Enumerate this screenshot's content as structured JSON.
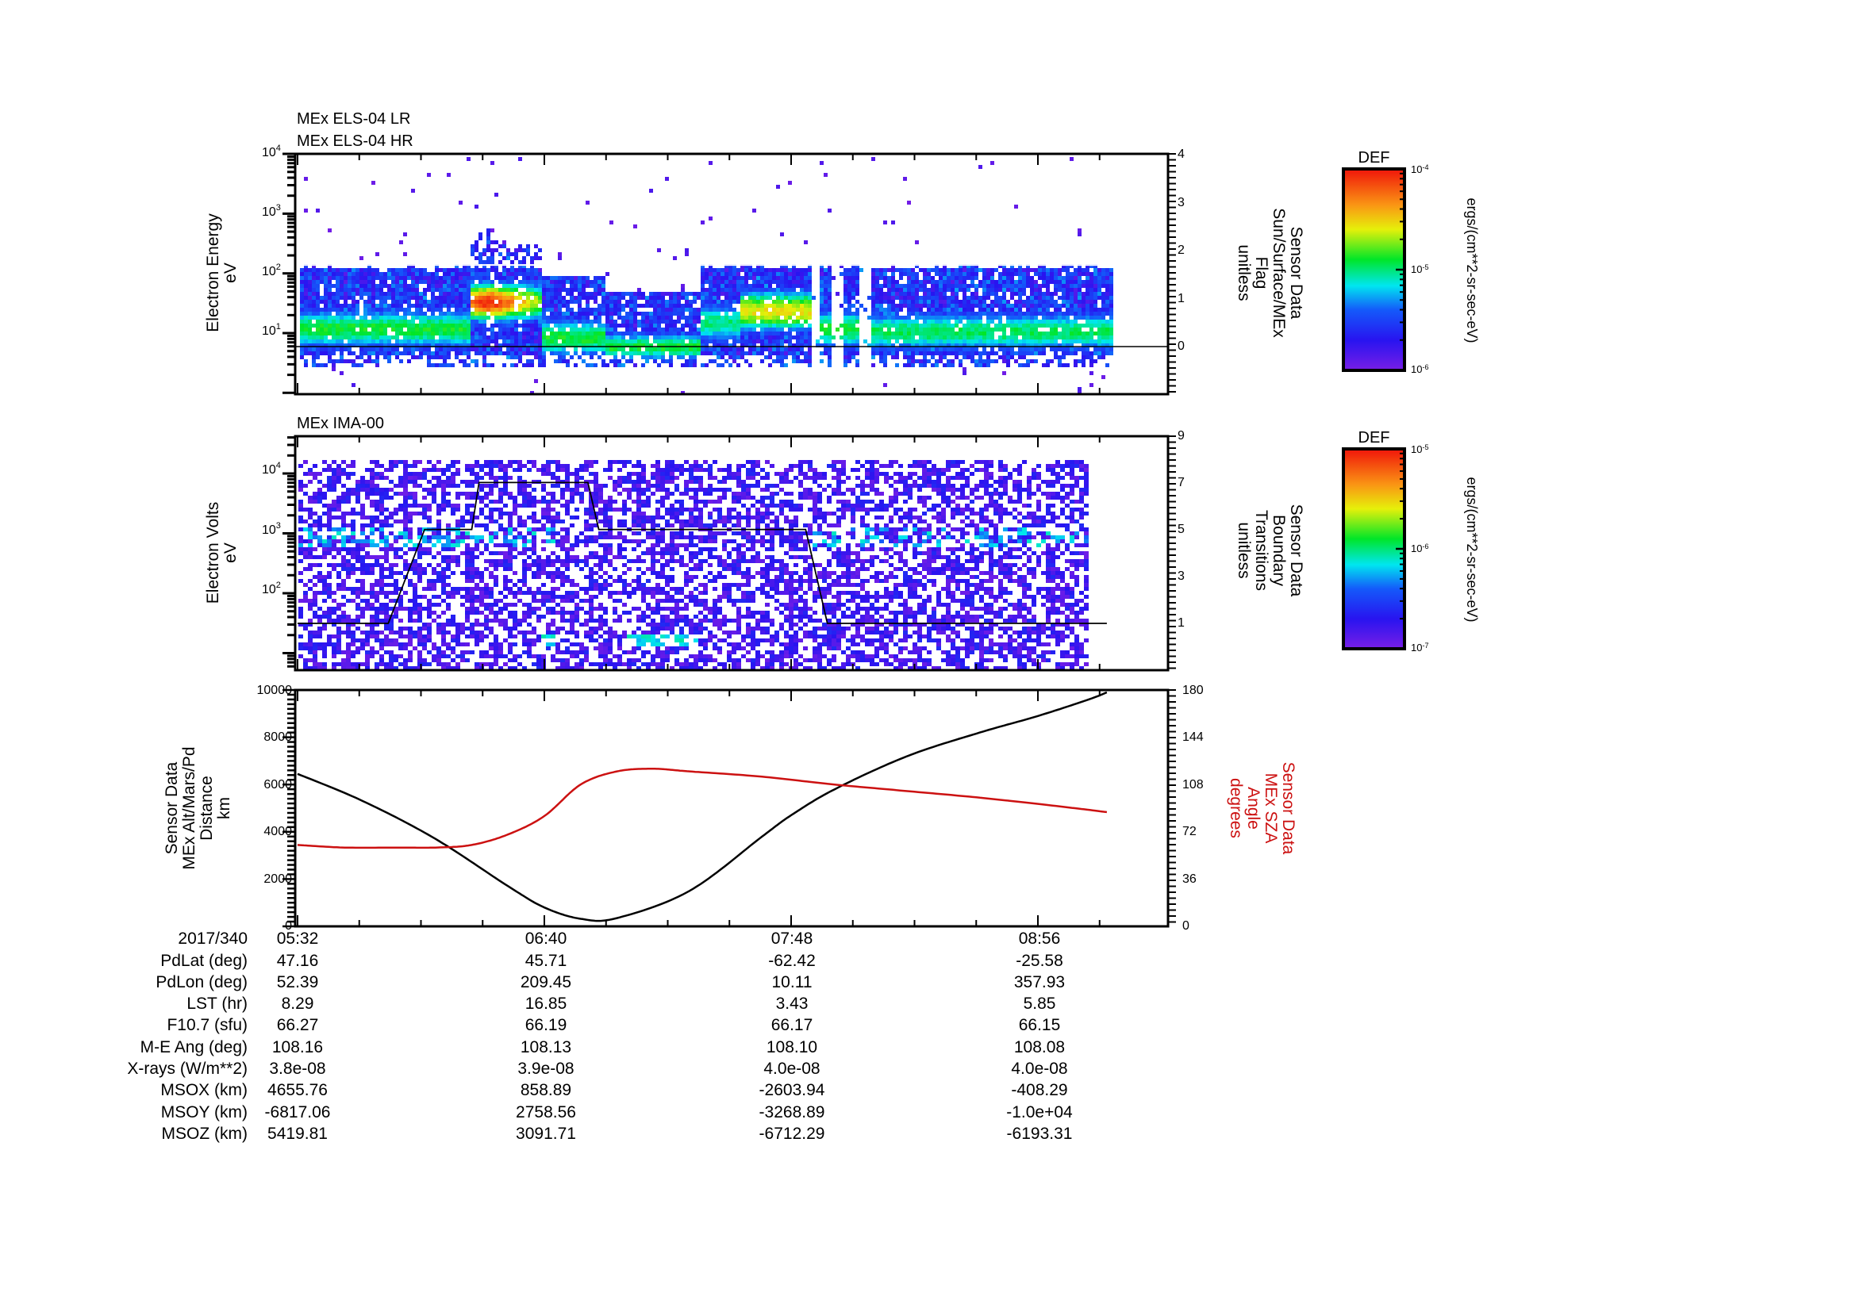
{
  "panels": {
    "els": {
      "titles": [
        "MEx ELS-04 LR",
        "MEx ELS-04 HR"
      ],
      "ylabel": [
        "Electron Energy",
        "eV"
      ],
      "y2label": [
        "Sensor Data",
        "Sun/Surface/MEx",
        "Flag",
        "unitless"
      ],
      "yticks": [
        {
          "base": "10",
          "exp": "4"
        },
        {
          "base": "10",
          "exp": "3"
        },
        {
          "base": "10",
          "exp": "2"
        },
        {
          "base": "10",
          "exp": "1"
        }
      ],
      "y2ticks": [
        "4",
        "3",
        "2",
        "1",
        "0"
      ],
      "colorbar": {
        "title": "DEF",
        "max": {
          "base": "10",
          "exp": "-4"
        },
        "mid": {
          "base": "10",
          "exp": "-5"
        },
        "min": {
          "base": "10",
          "exp": "-6"
        },
        "units": "ergs/(cm**2-sr-sec-eV)"
      }
    },
    "ima": {
      "titles": [
        "MEx IMA-00"
      ],
      "ylabel": [
        "Electron Volts",
        "eV"
      ],
      "y2label": [
        "Sensor Data",
        "Boundary",
        "Transitions",
        "unitless"
      ],
      "yticks": [
        {
          "base": "10",
          "exp": "4"
        },
        {
          "base": "10",
          "exp": "3"
        },
        {
          "base": "10",
          "exp": "2"
        }
      ],
      "y2ticks": [
        "9",
        "7",
        "5",
        "3",
        "1"
      ],
      "colorbar": {
        "title": "DEF",
        "max": {
          "base": "10",
          "exp": "-5"
        },
        "mid": {
          "base": "10",
          "exp": "-6"
        },
        "min": {
          "base": "10",
          "exp": "-7"
        },
        "units": "ergs/(cm**2-sr-sec-eV)"
      }
    },
    "orbit": {
      "ylabel": [
        "Sensor Data",
        "MEx Alt/Mars/Pd",
        "Distance",
        "km"
      ],
      "y2label": [
        "Sensor Data",
        "MEx SZA",
        "Angle",
        "degrees"
      ],
      "yticks": [
        "10000",
        "8000",
        "6000",
        "4000",
        "2000",
        "0"
      ],
      "y2ticks": [
        "180",
        "144",
        "108",
        "72",
        "36",
        "0"
      ],
      "y2color": "#cc1111"
    }
  },
  "table": {
    "date": "2017/340",
    "times": [
      "05:32",
      "06:40",
      "07:48",
      "08:56"
    ],
    "rows": [
      {
        "label": "PdLat (deg)",
        "values": [
          "47.16",
          "45.71",
          "-62.42",
          "-25.58"
        ]
      },
      {
        "label": "PdLon (deg)",
        "values": [
          "52.39",
          "209.45",
          "10.11",
          "357.93"
        ]
      },
      {
        "label": "LST (hr)",
        "values": [
          "8.29",
          "16.85",
          "3.43",
          "5.85"
        ]
      },
      {
        "label": "F10.7 (sfu)",
        "values": [
          "66.27",
          "66.19",
          "66.17",
          "66.15"
        ]
      },
      {
        "label": "M-E Ang (deg)",
        "values": [
          "108.16",
          "108.13",
          "108.10",
          "108.08"
        ]
      },
      {
        "label": "X-rays (W/m**2)",
        "values": [
          "3.8e-08",
          "3.9e-08",
          "4.0e-08",
          "4.0e-08"
        ]
      },
      {
        "label": "MSOX (km)",
        "values": [
          "4655.76",
          "858.89",
          "-2603.94",
          "-408.29"
        ]
      },
      {
        "label": "MSOY (km)",
        "values": [
          "-6817.06",
          "2758.56",
          "-3268.89",
          "-1.0e+04"
        ]
      },
      {
        "label": "MSOZ (km)",
        "values": [
          "5419.81",
          "3091.71",
          "-6712.29",
          "-6193.31"
        ]
      }
    ]
  },
  "chart_data": [
    {
      "type": "heatmap",
      "title": "MEx ELS-04 LR / MEx ELS-04 HR",
      "xlabel": "Time (2017/340)",
      "ylabel": "Electron Energy (eV)",
      "yscale": "log",
      "ylim": [
        1,
        10000
      ],
      "colorbar": {
        "label": "DEF ergs/(cm**2-sr-sec-eV)",
        "range": [
          1e-06,
          0.0001
        ],
        "scale": "log"
      },
      "x_ticks": [
        "05:32",
        "06:40",
        "07:48",
        "08:56"
      ],
      "features": [
        {
          "desc": "background electron band 5-150 eV, green core ~10 eV",
          "x_range": [
            "05:32",
            "09:03"
          ]
        },
        {
          "desc": "intense red burst 20-80 eV",
          "x_range": [
            "06:05",
            "06:20"
          ]
        },
        {
          "desc": "low-energy band dip",
          "x_range": [
            "06:25",
            "07:10"
          ]
        },
        {
          "desc": "yellow/orange band ~20-30 eV",
          "x_range": [
            "07:20",
            "07:45"
          ]
        },
        {
          "desc": "data gaps (white vertical stripes)",
          "x": [
            "07:45",
            "07:53",
            "07:58"
          ]
        }
      ],
      "overlay_line": {
        "name": "Sun/Surface/MEx Flag",
        "y2_range": [
          -1,
          4
        ],
        "value": 0
      }
    },
    {
      "type": "heatmap",
      "title": "MEx IMA-00",
      "ylabel": "Electron Volts (eV)",
      "yscale": "log",
      "ylim": [
        3,
        40000
      ],
      "colorbar": {
        "label": "DEF ergs/(cm**2-sr-sec-eV)",
        "range": [
          1e-07,
          1e-05
        ],
        "scale": "log"
      },
      "x_ticks": [
        "05:32",
        "06:40",
        "07:48",
        "08:56"
      ],
      "features": [
        {
          "desc": "noise-level purple counts throughout 3 eV - 15 keV"
        },
        {
          "desc": "cyan band ~700-1000 eV",
          "x_range": [
            "05:32",
            "06:30"
          ]
        },
        {
          "desc": "cyan band ~700-1000 eV",
          "x_range": [
            "07:30",
            "09:00"
          ]
        },
        {
          "desc": "low-energy cyan ion signal ~20 eV",
          "x_range": [
            "06:40",
            "07:05"
          ]
        }
      ],
      "overlay_line": {
        "name": "Boundary Transitions",
        "y2_range": [
          -1,
          9
        ],
        "x": [
          "05:32",
          "05:57",
          "06:07",
          "06:20",
          "06:22",
          "06:52",
          "06:55",
          "07:52",
          "07:58",
          "09:15"
        ],
        "values": [
          1,
          1,
          5,
          5,
          7,
          7,
          5,
          5,
          1,
          1
        ]
      }
    },
    {
      "type": "line",
      "xlabel": "Time (2017/340)",
      "x_ticks": [
        "05:32",
        "06:40",
        "07:48",
        "08:56"
      ],
      "series": [
        {
          "name": "MEx Alt/Mars/Pd Distance (km)",
          "axis": "left",
          "color": "#000000",
          "x": [
            "05:32",
            "05:50",
            "06:10",
            "06:30",
            "06:40",
            "06:50",
            "07:00",
            "07:20",
            "07:40",
            "07:48",
            "08:00",
            "08:20",
            "08:40",
            "08:56",
            "09:10",
            "09:15"
          ],
          "values": [
            6450,
            5300,
            3700,
            1700,
            800,
            320,
            350,
            1500,
            3800,
            4700,
            5800,
            7200,
            8200,
            8900,
            9600,
            9900
          ]
        },
        {
          "name": "MEx SZA Angle (degrees)",
          "axis": "right",
          "color": "#cc1111",
          "x": [
            "05:32",
            "05:45",
            "06:00",
            "06:10",
            "06:20",
            "06:30",
            "06:40",
            "06:50",
            "07:00",
            "07:10",
            "07:20",
            "07:40",
            "08:00",
            "08:20",
            "08:40",
            "09:00",
            "09:15"
          ],
          "values": [
            62,
            60,
            60,
            60,
            62,
            70,
            84,
            108,
            118,
            120,
            118,
            114,
            108,
            103,
            98,
            92,
            87
          ]
        }
      ],
      "ylim": [
        0,
        10000
      ],
      "y2lim": [
        0,
        180
      ],
      "yticks": [
        0,
        2000,
        4000,
        6000,
        8000,
        10000
      ],
      "y2ticks": [
        0,
        36,
        72,
        108,
        144,
        180
      ]
    }
  ]
}
